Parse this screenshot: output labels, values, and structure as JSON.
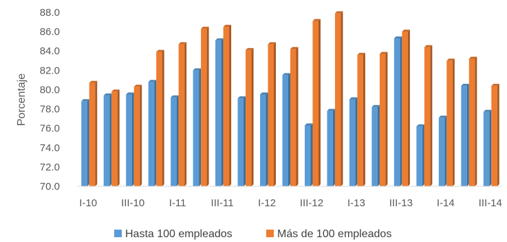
{
  "chart_data": {
    "type": "bar",
    "categories": [
      "I-10",
      "II-10",
      "III-10",
      "IV-10",
      "I-11",
      "II-11",
      "III-11",
      "IV-11",
      "I-12",
      "II-12",
      "III-12",
      "IV-12",
      "I-13",
      "II-13",
      "III-13",
      "IV-13",
      "I-14",
      "II-14",
      "III-14"
    ],
    "x_tick_labels": [
      "I-10",
      "III-10",
      "I-11",
      "III-11",
      "I-12",
      "III-12",
      "I-13",
      "III-13",
      "I-14",
      "III-14"
    ],
    "series": [
      {
        "name": "Hasta 100 empleados",
        "color": "#5B9BD5",
        "values": [
          78.8,
          79.4,
          79.5,
          80.8,
          79.2,
          82.0,
          85.1,
          79.1,
          79.5,
          81.5,
          76.3,
          77.8,
          79.0,
          78.2,
          85.3,
          76.2,
          77.1,
          80.4,
          77.7
        ]
      },
      {
        "name": "Más de 100 empleados",
        "color": "#ED7D31",
        "values": [
          80.7,
          79.8,
          80.3,
          83.9,
          84.7,
          86.3,
          86.5,
          84.1,
          84.7,
          84.2,
          87.1,
          87.9,
          83.6,
          83.7,
          86.0,
          84.4,
          83.0,
          83.2,
          80.4
        ]
      }
    ],
    "ylabel": "Porcentaje",
    "ylim": [
      70.0,
      88.0
    ],
    "y_ticks": [
      "70.0",
      "72.0",
      "74.0",
      "76.0",
      "78.0",
      "80.0",
      "82.0",
      "84.0",
      "86.0",
      "88.0"
    ],
    "legend_position": "bottom",
    "grid": false
  }
}
